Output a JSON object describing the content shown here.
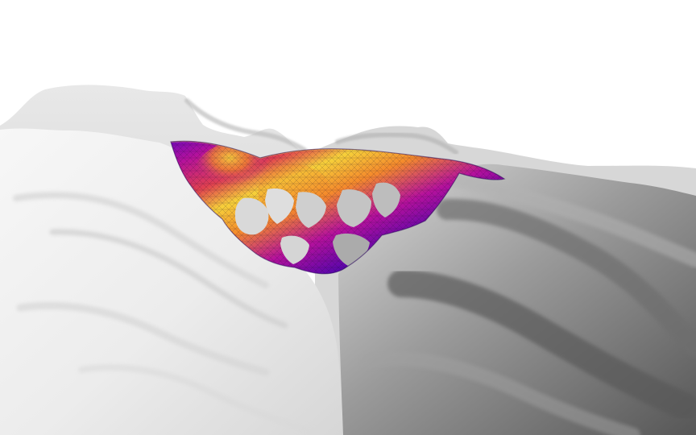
{
  "scene": {
    "background_color": "#ffffff",
    "terrain": {
      "light_color": "#f4f4f4",
      "mid_color": "#c9c9c9",
      "shadow_color": "#6a6a6a",
      "deep_shadow_color": "#4a4a4a"
    },
    "surface_mesh": {
      "colormap": [
        "#12008a",
        "#3a02b0",
        "#7b05c4",
        "#b5119c",
        "#e0404f",
        "#f48a2c",
        "#f6d03a"
      ],
      "wireframe_color": "#1a0a2a"
    }
  }
}
